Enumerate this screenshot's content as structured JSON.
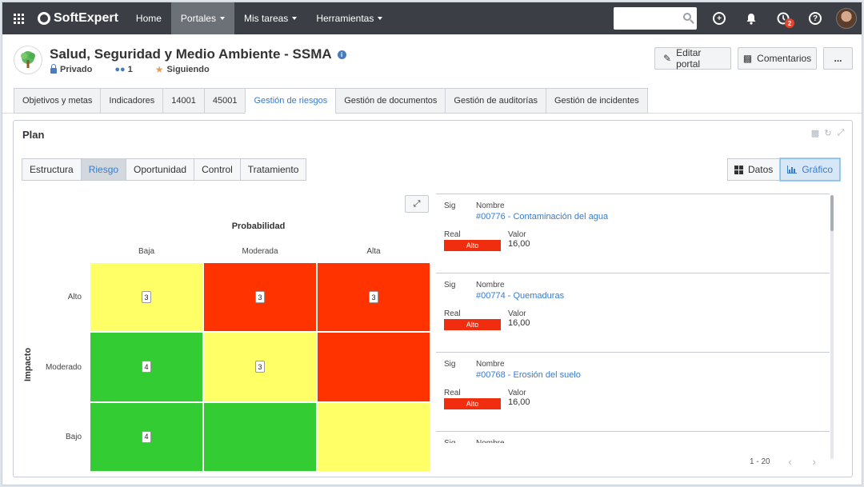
{
  "nav": {
    "brand": "SoftExpert",
    "items": [
      {
        "label": "Home",
        "caret": false,
        "active": false
      },
      {
        "label": "Portales",
        "caret": true,
        "active": true
      },
      {
        "label": "Mis tareas",
        "caret": true,
        "active": false
      },
      {
        "label": "Herramientas",
        "caret": true,
        "active": false
      }
    ],
    "search_value": "",
    "notification_badge": "2"
  },
  "portal": {
    "title": "Salud, Seguridad y Medio Ambiente - SSMA",
    "privacy": "Privado",
    "members": "1",
    "following": "Siguiendo",
    "buttons": {
      "edit": "Editar portal",
      "comments": "Comentarios",
      "more": "..."
    }
  },
  "tabs": [
    {
      "label": "Objetivos y metas",
      "active": false
    },
    {
      "label": "Indicadores",
      "active": false
    },
    {
      "label": "14001",
      "active": false
    },
    {
      "label": "45001",
      "active": false
    },
    {
      "label": "Gestión de riesgos",
      "active": true
    },
    {
      "label": "Gestión de documentos",
      "active": false
    },
    {
      "label": "Gestión de auditorías",
      "active": false
    },
    {
      "label": "Gestión de incidentes",
      "active": false
    }
  ],
  "widget": {
    "title": "Plan",
    "subtabs": [
      {
        "label": "Estructura",
        "active": false
      },
      {
        "label": "Riesgo",
        "active": true
      },
      {
        "label": "Oportunidad",
        "active": false
      },
      {
        "label": "Control",
        "active": false
      },
      {
        "label": "Tratamiento",
        "active": false
      }
    ],
    "view_buttons": {
      "data": "Datos",
      "chart": "Gráfico"
    },
    "matrix": {
      "x_title": "Probabilidad",
      "y_title": "Impacto",
      "columns": [
        "Baja",
        "Moderada",
        "Alta"
      ],
      "rows": [
        "Alto",
        "Moderado",
        "Bajo"
      ],
      "colors": {
        "green": "#33cc33",
        "yellow": "#ffff66",
        "red": "#ff3300"
      },
      "cells": [
        [
          {
            "color": "yellow",
            "count": "3"
          },
          {
            "color": "red",
            "count": "3"
          },
          {
            "color": "red",
            "count": "3"
          }
        ],
        [
          {
            "color": "green",
            "count": "4"
          },
          {
            "color": "yellow",
            "count": "3"
          },
          {
            "color": "red",
            "count": ""
          }
        ],
        [
          {
            "color": "green",
            "count": "4"
          },
          {
            "color": "green",
            "count": ""
          },
          {
            "color": "yellow",
            "count": ""
          }
        ]
      ]
    },
    "risks": {
      "labels": {
        "sig": "Sig",
        "name": "Nombre",
        "real": "Real",
        "value": "Valor"
      },
      "items": [
        {
          "name": "#00776 - Contaminación del agua",
          "real": "Alto",
          "value": "16,00"
        },
        {
          "name": "#00774 - Quemaduras",
          "real": "Alto",
          "value": "16,00"
        },
        {
          "name": "#00768 - Erosión del suelo",
          "real": "Alto",
          "value": "16,00"
        },
        {
          "name": "",
          "real": "",
          "value": ""
        }
      ]
    },
    "pager": "1 - 20"
  }
}
